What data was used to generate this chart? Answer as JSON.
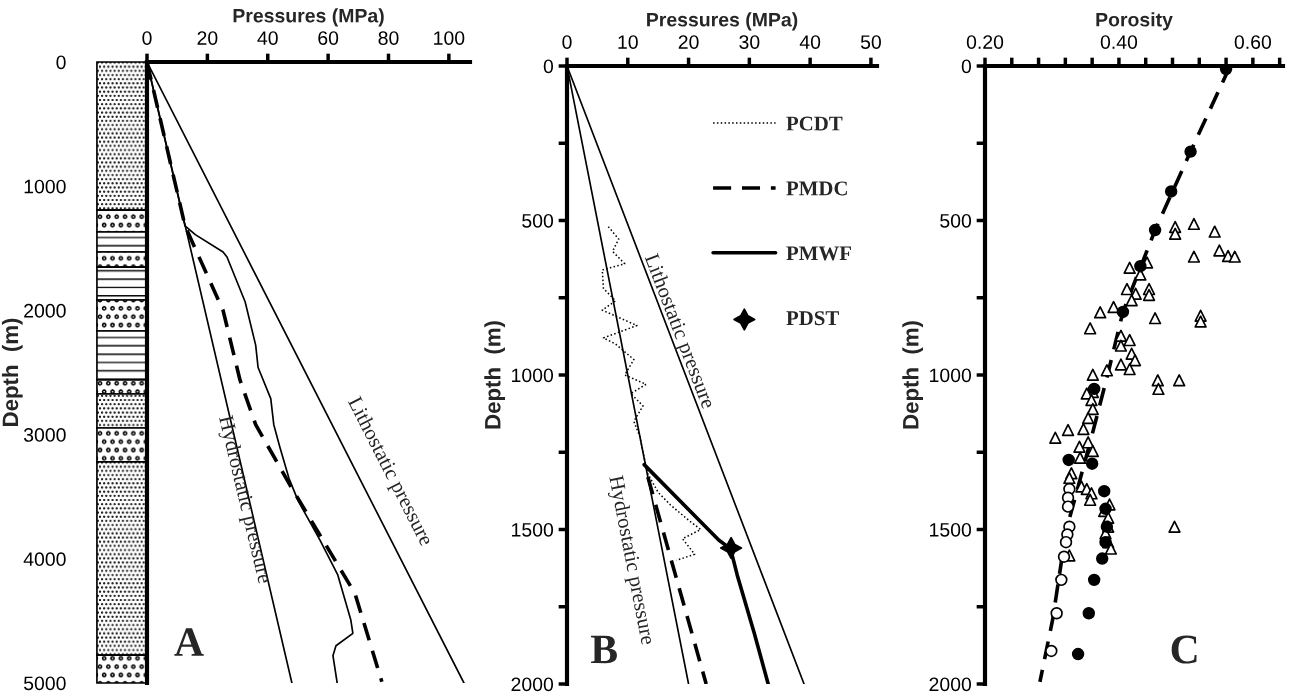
{
  "chart_data": [
    {
      "type": "line",
      "xlabel": "Pressures (MPa)",
      "ylabel": "Depth  (m)",
      "xlim": [
        0,
        107
      ],
      "xticks": [
        0,
        20,
        40,
        60,
        80,
        100
      ],
      "ylim": [
        5000,
        0
      ],
      "yticks": [
        0,
        1000,
        2000,
        3000,
        4000,
        5000
      ],
      "series": [
        {
          "color": "#000000",
          "line_style": "solid",
          "x": [
            0,
            48
          ],
          "values": [
            0,
            5000
          ]
        },
        {
          "color": "#000000",
          "line_style": "solid",
          "x": [
            0,
            105
          ],
          "values": [
            0,
            5000
          ]
        },
        {
          "color": "#000000",
          "line_style": "dashed",
          "x": [
            0,
            12.6,
            25.2,
            30.8,
            36,
            47.7,
            68.9,
            77.8
          ],
          "values": [
            0,
            1320,
            2000,
            2560,
            2920,
            3420,
            4280,
            4990
          ]
        },
        {
          "color": "#000000",
          "line_style": "solid",
          "x": [
            0,
            12.6,
            16,
            25.2,
            26.5,
            32.5,
            36,
            36.8,
            41,
            42,
            44,
            47,
            50,
            57.3,
            63.2,
            67.5,
            68.2,
            62.6,
            61.6,
            63
          ],
          "values": [
            0,
            1320,
            1390,
            1530,
            1570,
            1930,
            2280,
            2460,
            2710,
            2920,
            3100,
            3350,
            3530,
            3850,
            4130,
            4490,
            4600,
            4700,
            4780,
            5000
          ]
        }
      ],
      "annotations": [
        "Hydrostatic pressure",
        "Lithostatic pressure",
        "A"
      ]
    },
    {
      "type": "line",
      "xlabel": "Pressures (MPa)",
      "ylabel": "Depth  (m)",
      "xlim": [
        0,
        51
      ],
      "xticks": [
        0,
        10,
        20,
        30,
        40,
        50
      ],
      "ylim": [
        2000,
        0
      ],
      "yticks": [
        0,
        {
          "value": 250,
          "label": null
        },
        500,
        {
          "value": 750,
          "label": null
        },
        1000,
        {
          "value": 1250,
          "label": null
        },
        1500,
        {
          "value": 1750,
          "label": null
        },
        2000
      ],
      "legend": "top right",
      "series": [
        {
          "color": "#000000",
          "line_style": "solid",
          "x": [
            0,
            20
          ],
          "values": [
            0,
            2000
          ]
        },
        {
          "color": "#000000",
          "line_style": "solid",
          "x": [
            0,
            39
          ],
          "values": [
            0,
            2000
          ]
        },
        {
          "name": "PCDT",
          "color": "#000000",
          "line_style": "dotted",
          "x": [
            6.8,
            8.5,
            7.5,
            9.5,
            5.8,
            6,
            8,
            5.8,
            11.5,
            6,
            8,
            11,
            9.5,
            13,
            10.5,
            12.5,
            11,
            12,
            12.5,
            13.3,
            15,
            17,
            20,
            22,
            19,
            21,
            18
          ],
          "values": [
            520,
            560,
            600,
            640,
            660,
            720,
            760,
            790,
            840,
            880,
            900,
            950,
            1000,
            1030,
            1060,
            1100,
            1150,
            1200,
            1250,
            1320,
            1380,
            1420,
            1470,
            1500,
            1530,
            1580,
            1600
          ]
        },
        {
          "name": "PMDC",
          "color": "#000000",
          "line_style": "dashed",
          "x": [
            13.3,
            22.9
          ],
          "values": [
            1330,
            2000
          ]
        },
        {
          "name": "PMWF",
          "color": "#000000",
          "line_style": "solid",
          "x": [
            12.7,
            25,
            26.9,
            28,
            30.8,
            33.1
          ],
          "values": [
            1290,
            1535,
            1562,
            1647,
            1835,
            2000
          ]
        },
        {
          "name": "PDST",
          "type": "scatter",
          "marker": "star",
          "color": "#000000",
          "x": [
            27
          ],
          "values": [
            1560
          ]
        }
      ],
      "annotations": [
        "Lithostatic pressure",
        "Hydrostatic pressure",
        "B"
      ]
    },
    {
      "type": "scatter",
      "xlabel": "Porosity",
      "ylabel": "Depth  (m)",
      "xlim": [
        0.2,
        0.645
      ],
      "xticks": [
        {
          "value": 0.2,
          "label": "0.20"
        },
        {
          "value": 0.24,
          "label": null
        },
        {
          "value": 0.28,
          "label": null
        },
        {
          "value": 0.32,
          "label": null
        },
        {
          "value": 0.36,
          "label": null
        },
        {
          "value": 0.4,
          "label": "0.40"
        },
        {
          "value": 0.44,
          "label": null
        },
        {
          "value": 0.48,
          "label": null
        },
        {
          "value": 0.52,
          "label": null
        },
        {
          "value": 0.56,
          "label": null
        },
        {
          "value": 0.6,
          "label": "0.60"
        },
        {
          "value": 0.64,
          "label": null
        }
      ],
      "ylim": [
        2000,
        0
      ],
      "yticks": [
        0,
        {
          "value": 250,
          "label": null
        },
        500,
        {
          "value": 750,
          "label": null
        },
        1000,
        {
          "value": 1250,
          "label": null
        },
        1500,
        {
          "value": 1750,
          "label": null
        },
        2000
      ],
      "series": [
        {
          "type": "line",
          "color": "#000000",
          "line_style": "dashed",
          "x": [
            0.566,
            0.507,
            0.454,
            0.406,
            0.383,
            0.357,
            0.321,
            0.301,
            0.282
          ],
          "values": [
            0,
            277,
            531,
            796,
            1000,
            1218,
            1505,
            1792,
            1993
          ]
        },
        {
          "marker": "triangle",
          "color": "#ffffff",
          "x": [
            0.484,
            0.484,
            0.512,
            0.543,
            0.55,
            0.563,
            0.573,
            0.512,
            0.416,
            0.442,
            0.432,
            0.412,
            0.425,
            0.445,
            0.445,
            0.419,
            0.372,
            0.392,
            0.454,
            0.357,
            0.522,
            0.522,
            0.403,
            0.416,
            0.403,
            0.419,
            0.424,
            0.403,
            0.416,
            0.382,
            0.361,
            0.458,
            0.459,
            0.49,
            0.361,
            0.352,
            0.359,
            0.361,
            0.354,
            0.347,
            0.305,
            0.324,
            0.354,
            0.341,
            0.361,
            0.342,
            0.329,
            0.326,
            0.344,
            0.352,
            0.359,
            0.357,
            0.386,
            0.378,
            0.384,
            0.384,
            0.38,
            0.384,
            0.388,
            0.326,
            0.483
          ],
          "values": [
            521,
            543,
            511,
            536,
            597,
            615,
            617,
            617,
            653,
            636,
            675,
            722,
            737,
            722,
            741,
            758,
            797,
            780,
            816,
            849,
            808,
            827,
            873,
            887,
            905,
            931,
            952,
            966,
            981,
            985,
            999,
            1017,
            1045,
            1017,
            1055,
            1060,
            1081,
            1110,
            1139,
            1175,
            1203,
            1178,
            1218,
            1232,
            1246,
            1268,
            1318,
            1333,
            1361,
            1369,
            1383,
            1404,
            1419,
            1440,
            1462,
            1491,
            1512,
            1541,
            1562,
            1584,
            1491
          ]
        },
        {
          "marker": "circle",
          "color": "#ffffff",
          "x": [
            0.326,
            0.324,
            0.324,
            0.326,
            0.323,
            0.321,
            0.318,
            0.314,
            0.307,
            0.299
          ],
          "values": [
            1369,
            1397,
            1426,
            1491,
            1516,
            1541,
            1588,
            1663,
            1771,
            1893
          ]
        },
        {
          "marker": "circle",
          "color": "#000000",
          "x": [
            0.56,
            0.507,
            0.478,
            0.454,
            0.432,
            0.406,
            0.363,
            0.325,
            0.36,
            0.378,
            0.38,
            0.382,
            0.38,
            0.375,
            0.363,
            0.355,
            0.339
          ],
          "values": [
            10,
            277,
            406,
            531,
            648,
            796,
            1045,
            1275,
            1287,
            1376,
            1433,
            1491,
            1541,
            1594,
            1663,
            1771,
            1903
          ]
        }
      ],
      "annotations": [
        "C"
      ]
    }
  ]
}
